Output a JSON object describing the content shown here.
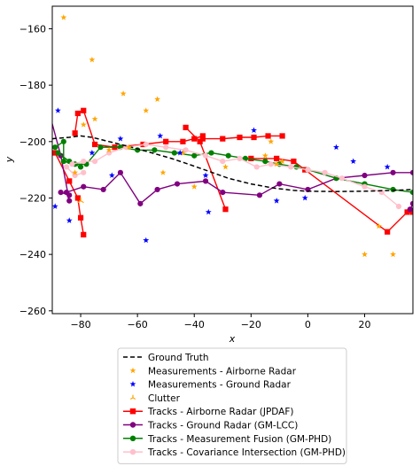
{
  "chart_data": {
    "type": "line",
    "title": "",
    "xlabel": "x",
    "ylabel": "y",
    "xlim": [
      -90,
      37
    ],
    "ylim": [
      -261,
      -152
    ],
    "xticks": [
      -80,
      -60,
      -40,
      -20,
      0,
      20
    ],
    "xtick_labels": [
      "−80",
      "−60",
      "−40",
      "−20",
      "0",
      "20"
    ],
    "yticks": [
      -160,
      -180,
      -200,
      -220,
      -240,
      -260
    ],
    "ytick_labels": [
      "−160",
      "−180",
      "−200",
      "−220",
      "−240",
      "−260"
    ],
    "grid": false,
    "legend_placement": "below",
    "ground_truth": {
      "name": "Ground Truth",
      "color": "#000000",
      "points": [
        [
          -90,
          -199
        ],
        [
          -84,
          -198.5
        ],
        [
          -80,
          -198
        ],
        [
          -76,
          -198.5
        ],
        [
          -70,
          -200
        ],
        [
          -62,
          -202
        ],
        [
          -55,
          -204
        ],
        [
          -48,
          -206
        ],
        [
          -42,
          -208
        ],
        [
          -35,
          -210.5
        ],
        [
          -28,
          -213
        ],
        [
          -20,
          -215
        ],
        [
          -12,
          -216.5
        ],
        [
          -5,
          -217.3
        ],
        [
          0,
          -217.6
        ],
        [
          10,
          -217.7
        ],
        [
          20,
          -217.6
        ],
        [
          30,
          -217.3
        ],
        [
          37,
          -217
        ]
      ]
    },
    "scatter_series": [
      {
        "name": "Measurements - Airborne Radar",
        "color": "#ffa500",
        "marker": "star",
        "points": [
          [
            -86,
            -156
          ],
          [
            -76,
            -171
          ],
          [
            -65,
            -183
          ],
          [
            -57,
            -189
          ],
          [
            -53,
            -185
          ],
          [
            -75,
            -192
          ],
          [
            -79,
            -194
          ],
          [
            -63,
            -202
          ],
          [
            -70,
            -203
          ],
          [
            -44,
            -204
          ],
          [
            -51,
            -211
          ],
          [
            -40,
            -216
          ],
          [
            -29,
            -209
          ],
          [
            -15,
            -205
          ],
          [
            -13,
            -200
          ],
          [
            -11,
            -208
          ],
          [
            20,
            -240
          ],
          [
            30,
            -240
          ],
          [
            -82,
            -211
          ],
          [
            -9,
            -207
          ],
          [
            25,
            -230
          ]
        ]
      },
      {
        "name": "Measurements - Ground Radar",
        "color": "#0000ff",
        "marker": "star",
        "points": [
          [
            -88,
            -189
          ],
          [
            -89,
            -223
          ],
          [
            -84,
            -228
          ],
          [
            -76,
            -204
          ],
          [
            -66,
            -199
          ],
          [
            -69,
            -212
          ],
          [
            -52,
            -198
          ],
          [
            -57,
            -235
          ],
          [
            -35,
            -225
          ],
          [
            -36,
            -212
          ],
          [
            -19,
            -196
          ],
          [
            -11,
            -221
          ],
          [
            -1,
            -220
          ],
          [
            10,
            -202
          ],
          [
            16,
            -207
          ],
          [
            28,
            -209
          ],
          [
            -45,
            -204
          ]
        ]
      },
      {
        "name": "Clutter",
        "color": "#ffa500",
        "marker": "tri",
        "points": [
          [
            -80,
            -221
          ]
        ]
      }
    ],
    "track_series": [
      {
        "name": "Tracks - Airborne Radar (JPDAF)",
        "color": "#ff0000",
        "marker": "square",
        "segments": [
          [
            [
              -89,
              -204
            ],
            [
              -84,
              -214
            ],
            [
              -81,
              -220
            ],
            [
              -80,
              -227
            ],
            [
              -79,
              -233
            ]
          ],
          [
            [
              -82,
              -197
            ],
            [
              -81,
              -190
            ],
            [
              -79,
              -189
            ],
            [
              -75,
              -201
            ],
            [
              -68,
              -202
            ],
            [
              -58,
              -201
            ],
            [
              -50,
              -200
            ],
            [
              -44,
              -200
            ],
            [
              -40,
              -199
            ],
            [
              -37,
              -198
            ]
          ],
          [
            [
              -43,
              -195
            ],
            [
              -38,
              -200
            ],
            [
              -29,
              -224
            ]
          ],
          [
            [
              -37,
              -199
            ],
            [
              -30,
              -199
            ],
            [
              -24,
              -198.5
            ],
            [
              -19,
              -198.5
            ],
            [
              -14,
              -198
            ],
            [
              -9,
              -198
            ]
          ],
          [
            [
              -20,
              -206
            ],
            [
              -11,
              -206
            ],
            [
              -5,
              -207
            ],
            [
              -1,
              -210
            ],
            [
              28,
              -232
            ],
            [
              35,
              -225
            ],
            [
              37,
              -225
            ]
          ]
        ]
      },
      {
        "name": "Tracks - Ground Radar (GM-LCC)",
        "color": "#800080",
        "marker": "circle",
        "segments": [
          [
            [
              -91,
              -190
            ],
            [
              -87,
              -205
            ],
            [
              -84,
              -221
            ],
            [
              -85,
              -218
            ],
            [
              -79,
              -216
            ],
            [
              -72,
              -217
            ],
            [
              -66,
              -211
            ],
            [
              -59,
              -222
            ],
            [
              -53,
              -217
            ],
            [
              -46,
              -215
            ],
            [
              -36,
              -214
            ],
            [
              -30,
              -218
            ],
            [
              -17,
              -219
            ],
            [
              -10,
              -215
            ],
            [
              0,
              -217
            ],
            [
              10,
              -213
            ],
            [
              20,
              -212
            ],
            [
              30,
              -211
            ],
            [
              37,
              -211
            ]
          ],
          [
            [
              -87,
              -218
            ],
            [
              -84,
              -219
            ]
          ],
          [
            [
              37,
              -222
            ],
            [
              36,
              -224
            ]
          ]
        ]
      },
      {
        "name": "Tracks - Measurement Fusion (GM-PHD)",
        "color": "#008000",
        "marker": "circle",
        "segments": [
          [
            [
              -89,
              -202
            ],
            [
              -86,
              -200
            ],
            [
              -86,
              -207
            ],
            [
              -82,
              -208
            ],
            [
              -78,
              -208
            ],
            [
              -73,
              -202
            ],
            [
              -66,
              -202
            ],
            [
              -60,
              -203
            ],
            [
              -54,
              -203
            ],
            [
              -47,
              -204
            ],
            [
              -40,
              -205
            ],
            [
              -34,
              -204
            ],
            [
              -28,
              -205
            ],
            [
              -22,
              -206
            ],
            [
              -15,
              -207
            ],
            [
              -10,
              -208
            ],
            [
              -4,
              -209
            ],
            [
              0,
              -210
            ],
            [
              10,
              -213
            ],
            [
              20,
              -215
            ],
            [
              30,
              -217
            ],
            [
              37,
              -218
            ]
          ],
          [
            [
              -88,
              -204
            ],
            [
              -84,
              -207
            ],
            [
              -80,
              -209
            ]
          ]
        ]
      },
      {
        "name": "Tracks - Covariance Intersection (GM-PHD)",
        "color": "#ffc0cb",
        "marker": "circle",
        "segments": [
          [
            [
              -83,
              -208
            ],
            [
              -79,
              -207
            ],
            [
              -75,
              -207
            ],
            [
              -70,
              -204
            ],
            [
              -64,
              -202
            ],
            [
              -57,
              -201
            ],
            [
              -50,
              -202
            ],
            [
              -43,
              -203
            ],
            [
              -36,
              -205
            ],
            [
              -30,
              -207
            ],
            [
              -24,
              -206
            ],
            [
              -18,
              -209
            ],
            [
              -13,
              -208
            ],
            [
              -6,
              -209
            ],
            [
              0,
              -210
            ],
            [
              6,
              -211
            ],
            [
              12,
              -213
            ],
            [
              20,
              -216
            ],
            [
              26,
              -218
            ],
            [
              32,
              -223
            ]
          ],
          [
            [
              -85,
              -209
            ],
            [
              -82,
              -212
            ],
            [
              -79,
              -211
            ]
          ]
        ]
      }
    ]
  }
}
